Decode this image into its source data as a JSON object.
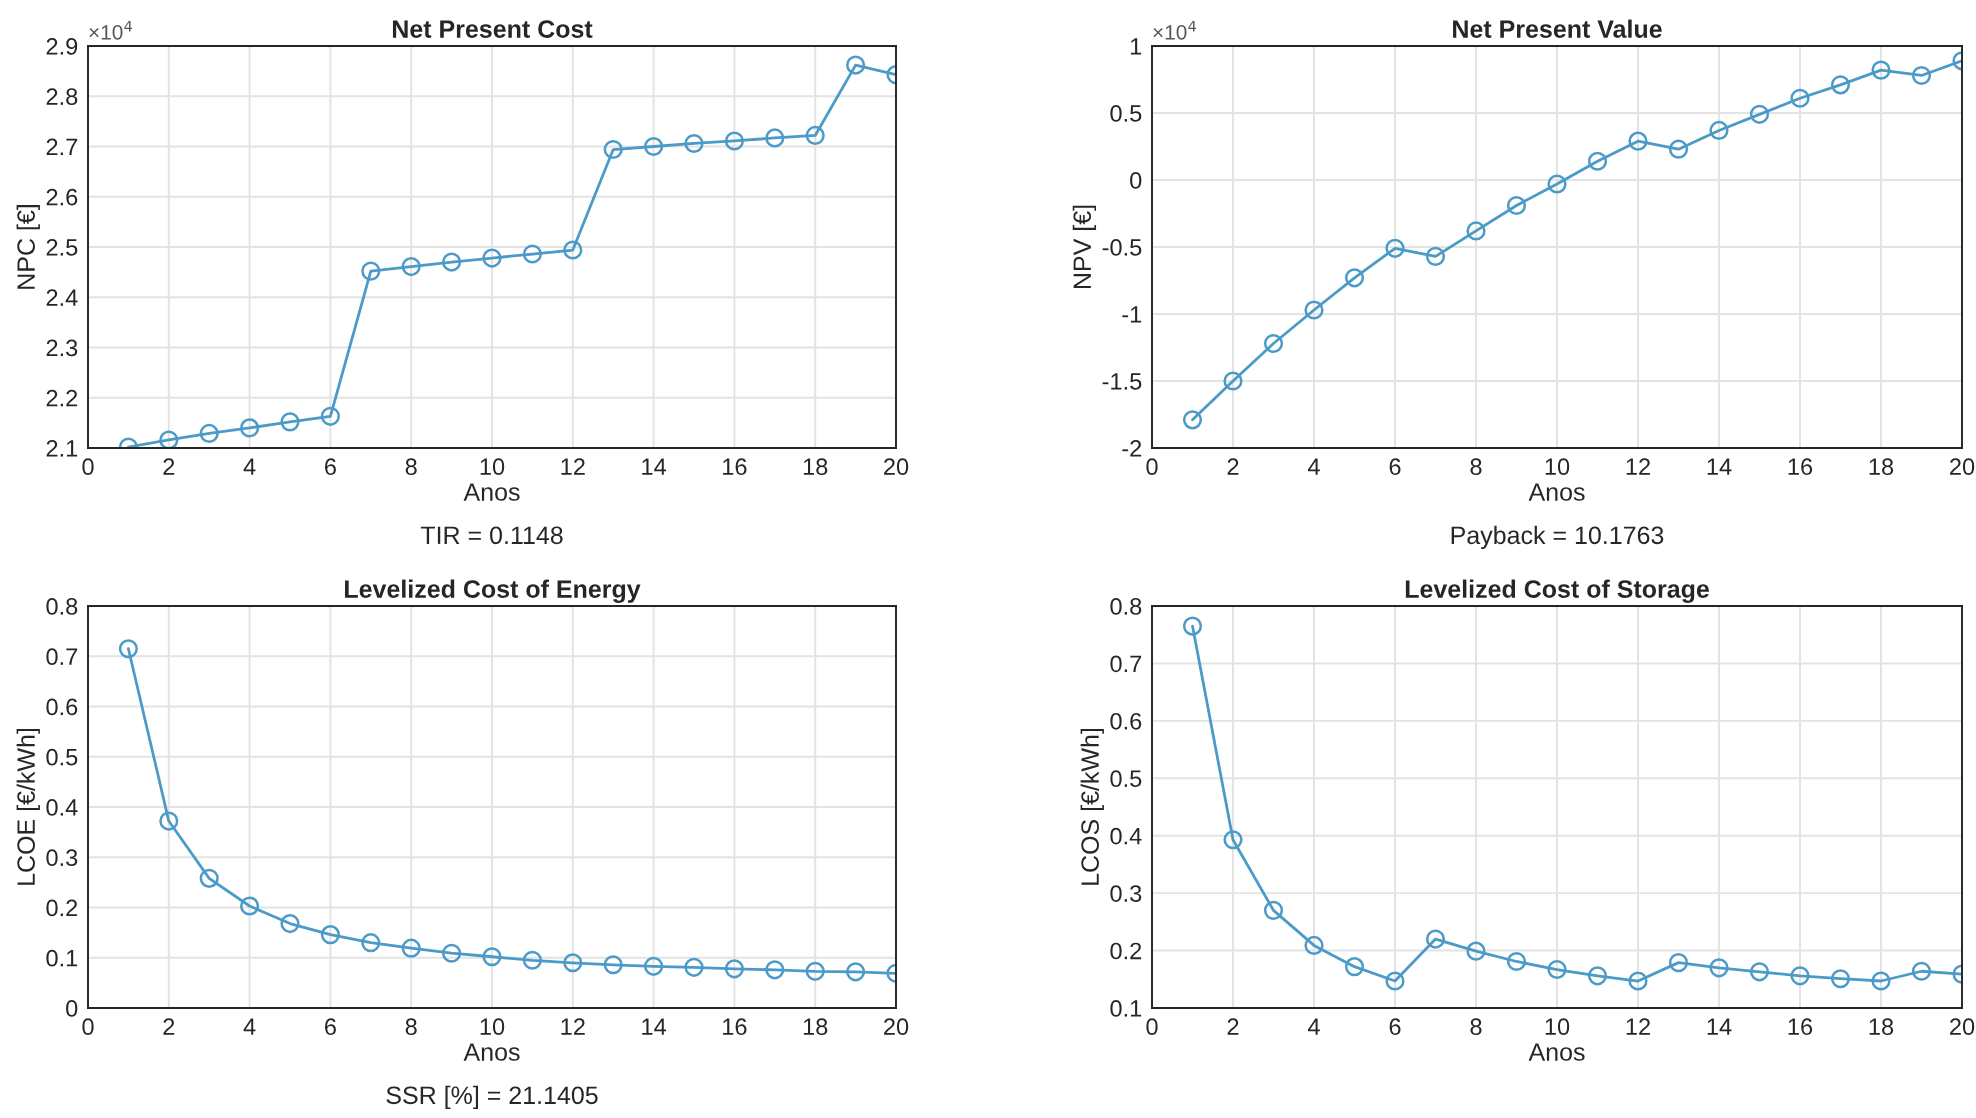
{
  "chart_data": [
    {
      "type": "line",
      "title": "Net Present Cost",
      "xlabel": "Anos",
      "ylabel": "NPC [€]",
      "x": [
        1,
        2,
        3,
        4,
        5,
        6,
        7,
        8,
        9,
        10,
        11,
        12,
        13,
        14,
        15,
        16,
        17,
        18,
        19,
        20
      ],
      "series": [
        {
          "color": "#4b9ac7",
          "values": [
            2.102,
            2.116,
            2.129,
            2.14,
            2.152,
            2.163,
            2.452,
            2.461,
            2.47,
            2.478,
            2.486,
            2.494,
            2.694,
            2.7,
            2.706,
            2.711,
            2.717,
            2.722,
            2.862,
            2.843
          ]
        }
      ],
      "xlim": [
        0,
        20
      ],
      "xticks": [
        0,
        2,
        4,
        6,
        8,
        10,
        12,
        14,
        16,
        18,
        20
      ],
      "ylim": [
        2.1,
        2.9
      ],
      "yticks": [
        2.1,
        2.2,
        2.3,
        2.4,
        2.5,
        2.6,
        2.7,
        2.8,
        2.9
      ],
      "annotations": [
        "×10$^{4}$",
        "TIR = 0.1148"
      ],
      "grid": true,
      "marker": "circle",
      "line_style": "solid",
      "legend": false
    },
    {
      "type": "line",
      "title": "Net Present Value",
      "xlabel": "Anos",
      "ylabel": "NPV [€]",
      "x": [
        1,
        2,
        3,
        4,
        5,
        6,
        7,
        8,
        9,
        10,
        11,
        12,
        13,
        14,
        15,
        16,
        17,
        18,
        19,
        20
      ],
      "series": [
        {
          "color": "#4b9ac7",
          "values": [
            -1.79,
            -1.5,
            -1.22,
            -0.97,
            -0.73,
            -0.51,
            -0.57,
            -0.38,
            -0.19,
            -0.03,
            0.14,
            0.29,
            0.23,
            0.37,
            0.49,
            0.61,
            0.71,
            0.82,
            0.78,
            0.89
          ]
        }
      ],
      "xlim": [
        0,
        20
      ],
      "xticks": [
        0,
        2,
        4,
        6,
        8,
        10,
        12,
        14,
        16,
        18,
        20
      ],
      "ylim": [
        -2,
        1
      ],
      "yticks": [
        -2,
        -1.5,
        -1,
        -0.5,
        0,
        0.5,
        1
      ],
      "annotations": [
        "×10$^{4}$",
        "Payback = 10.1763"
      ],
      "grid": true,
      "marker": "circle",
      "line_style": "solid",
      "legend": false
    },
    {
      "type": "line",
      "title": "Levelized Cost of Energy",
      "xlabel": "Anos",
      "ylabel": "LCOE [€/kWh]",
      "x": [
        1,
        2,
        3,
        4,
        5,
        6,
        7,
        8,
        9,
        10,
        11,
        12,
        13,
        14,
        15,
        16,
        17,
        18,
        19,
        20
      ],
      "series": [
        {
          "color": "#4b9ac7",
          "values": [
            0.715,
            0.372,
            0.258,
            0.203,
            0.168,
            0.146,
            0.13,
            0.119,
            0.109,
            0.102,
            0.095,
            0.09,
            0.086,
            0.083,
            0.081,
            0.078,
            0.076,
            0.073,
            0.072,
            0.069
          ]
        }
      ],
      "xlim": [
        0,
        20
      ],
      "xticks": [
        0,
        2,
        4,
        6,
        8,
        10,
        12,
        14,
        16,
        18,
        20
      ],
      "ylim": [
        0,
        0.8
      ],
      "yticks": [
        0,
        0.1,
        0.2,
        0.3,
        0.4,
        0.5,
        0.6,
        0.7,
        0.8
      ],
      "annotations": [
        "SSR [%] = 21.1405"
      ],
      "grid": true,
      "marker": "circle",
      "line_style": "solid",
      "legend": false
    },
    {
      "type": "line",
      "title": "Levelized Cost of Storage",
      "xlabel": "Anos",
      "ylabel": "LCOS [€/kWh]",
      "x": [
        1,
        2,
        3,
        4,
        5,
        6,
        7,
        8,
        9,
        10,
        11,
        12,
        13,
        14,
        15,
        16,
        17,
        18,
        19,
        20
      ],
      "series": [
        {
          "color": "#4b9ac7",
          "values": [
            0.765,
            0.393,
            0.27,
            0.209,
            0.172,
            0.147,
            0.22,
            0.199,
            0.181,
            0.167,
            0.156,
            0.147,
            0.179,
            0.17,
            0.163,
            0.156,
            0.151,
            0.147,
            0.164,
            0.159
          ]
        }
      ],
      "xlim": [
        0,
        20
      ],
      "xticks": [
        0,
        2,
        4,
        6,
        8,
        10,
        12,
        14,
        16,
        18,
        20
      ],
      "ylim": [
        0.1,
        0.8
      ],
      "yticks": [
        0.1,
        0.2,
        0.3,
        0.4,
        0.5,
        0.6,
        0.7,
        0.8
      ],
      "grid": true,
      "marker": "circle",
      "line_style": "solid",
      "legend": false
    }
  ]
}
